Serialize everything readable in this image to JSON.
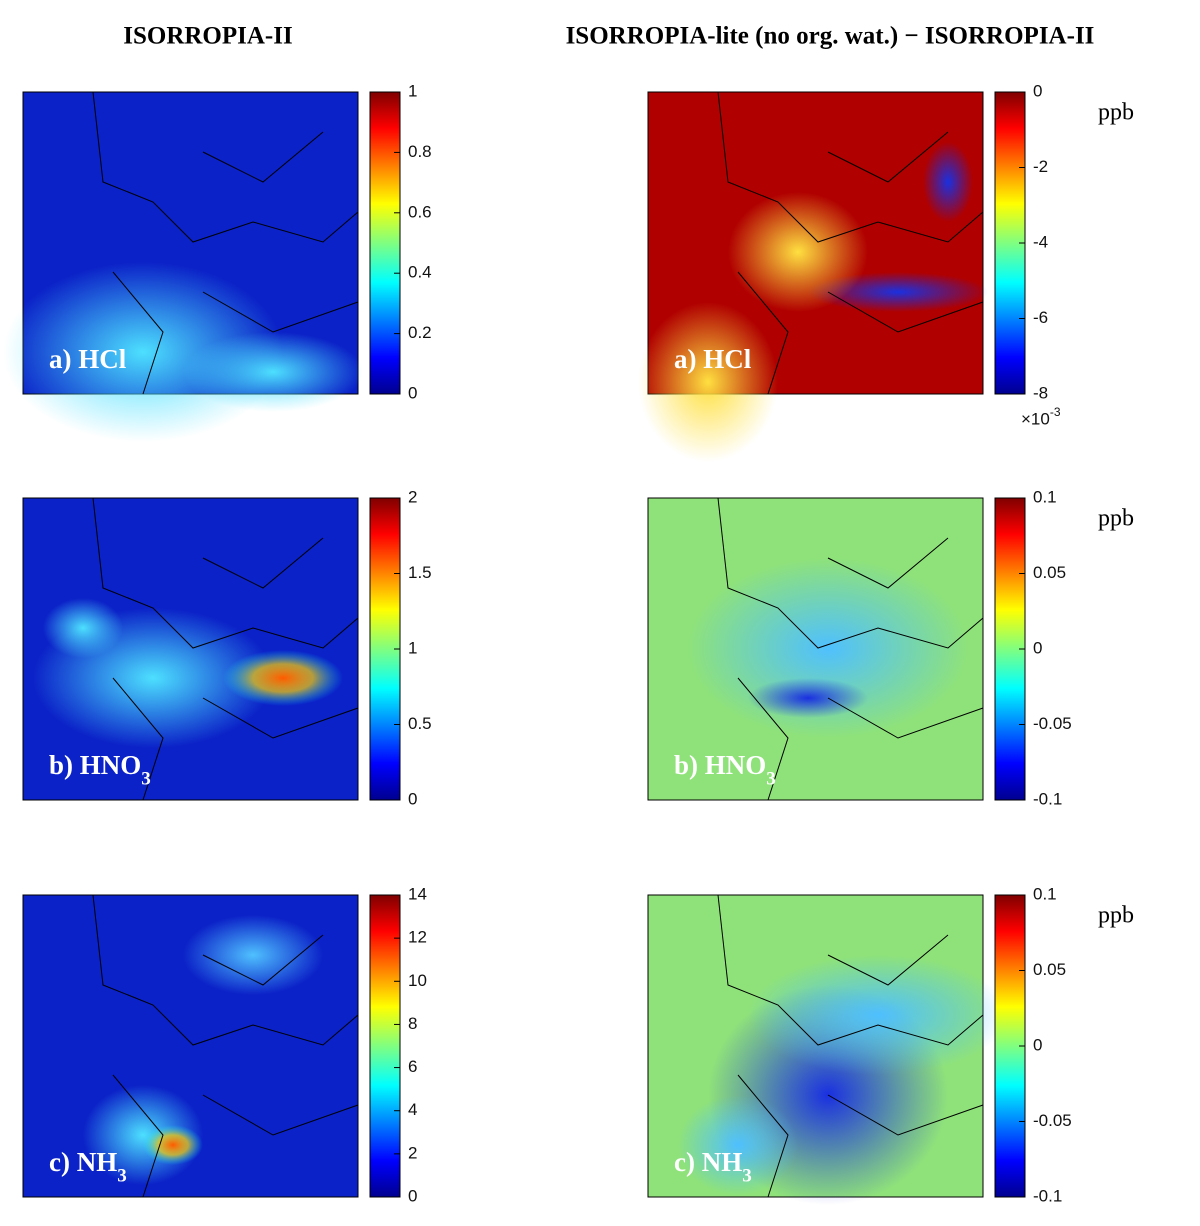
{
  "columns": [
    {
      "title": "ISORROPIA-II"
    },
    {
      "title": "ISORROPIA-lite (no org. wat.) − ISORROPIA-II"
    }
  ],
  "rows": [
    {
      "panels": [
        {
          "label": "a) HCl",
          "colorbar": {
            "lim": [
              0,
              1
            ],
            "ticks": [
              0,
              0.2,
              0.4,
              0.6,
              0.8,
              1
            ]
          }
        },
        {
          "label": "a) HCl",
          "unit": "ppb",
          "colorbar": {
            "lim": [
              -8,
              0
            ],
            "ticks": [
              -8,
              -6,
              -4,
              -2,
              0
            ],
            "multiplier": {
              "base": "×10",
              "exponent": "-3"
            }
          }
        }
      ]
    },
    {
      "panels": [
        {
          "label": "b) HNO",
          "label_subscript": "3",
          "colorbar": {
            "lim": [
              0,
              2
            ],
            "ticks": [
              0,
              0.5,
              1,
              1.5,
              2
            ]
          }
        },
        {
          "label": "b) HNO",
          "label_subscript": "3",
          "unit": "ppb",
          "colorbar": {
            "lim": [
              -0.1,
              0.1
            ],
            "ticks": [
              -0.1,
              -0.05,
              0,
              0.05,
              0.1
            ]
          }
        }
      ]
    },
    {
      "panels": [
        {
          "label": "c) NH",
          "label_subscript": "3",
          "colorbar": {
            "lim": [
              0,
              14
            ],
            "ticks": [
              0,
              2,
              4,
              6,
              8,
              10,
              12,
              14
            ]
          }
        },
        {
          "label": "c) NH",
          "label_subscript": "3",
          "unit": "ppb",
          "colorbar": {
            "lim": [
              -0.1,
              0.1
            ],
            "ticks": [
              -0.1,
              -0.05,
              0,
              0.05,
              0.1
            ]
          }
        }
      ]
    }
  ]
}
